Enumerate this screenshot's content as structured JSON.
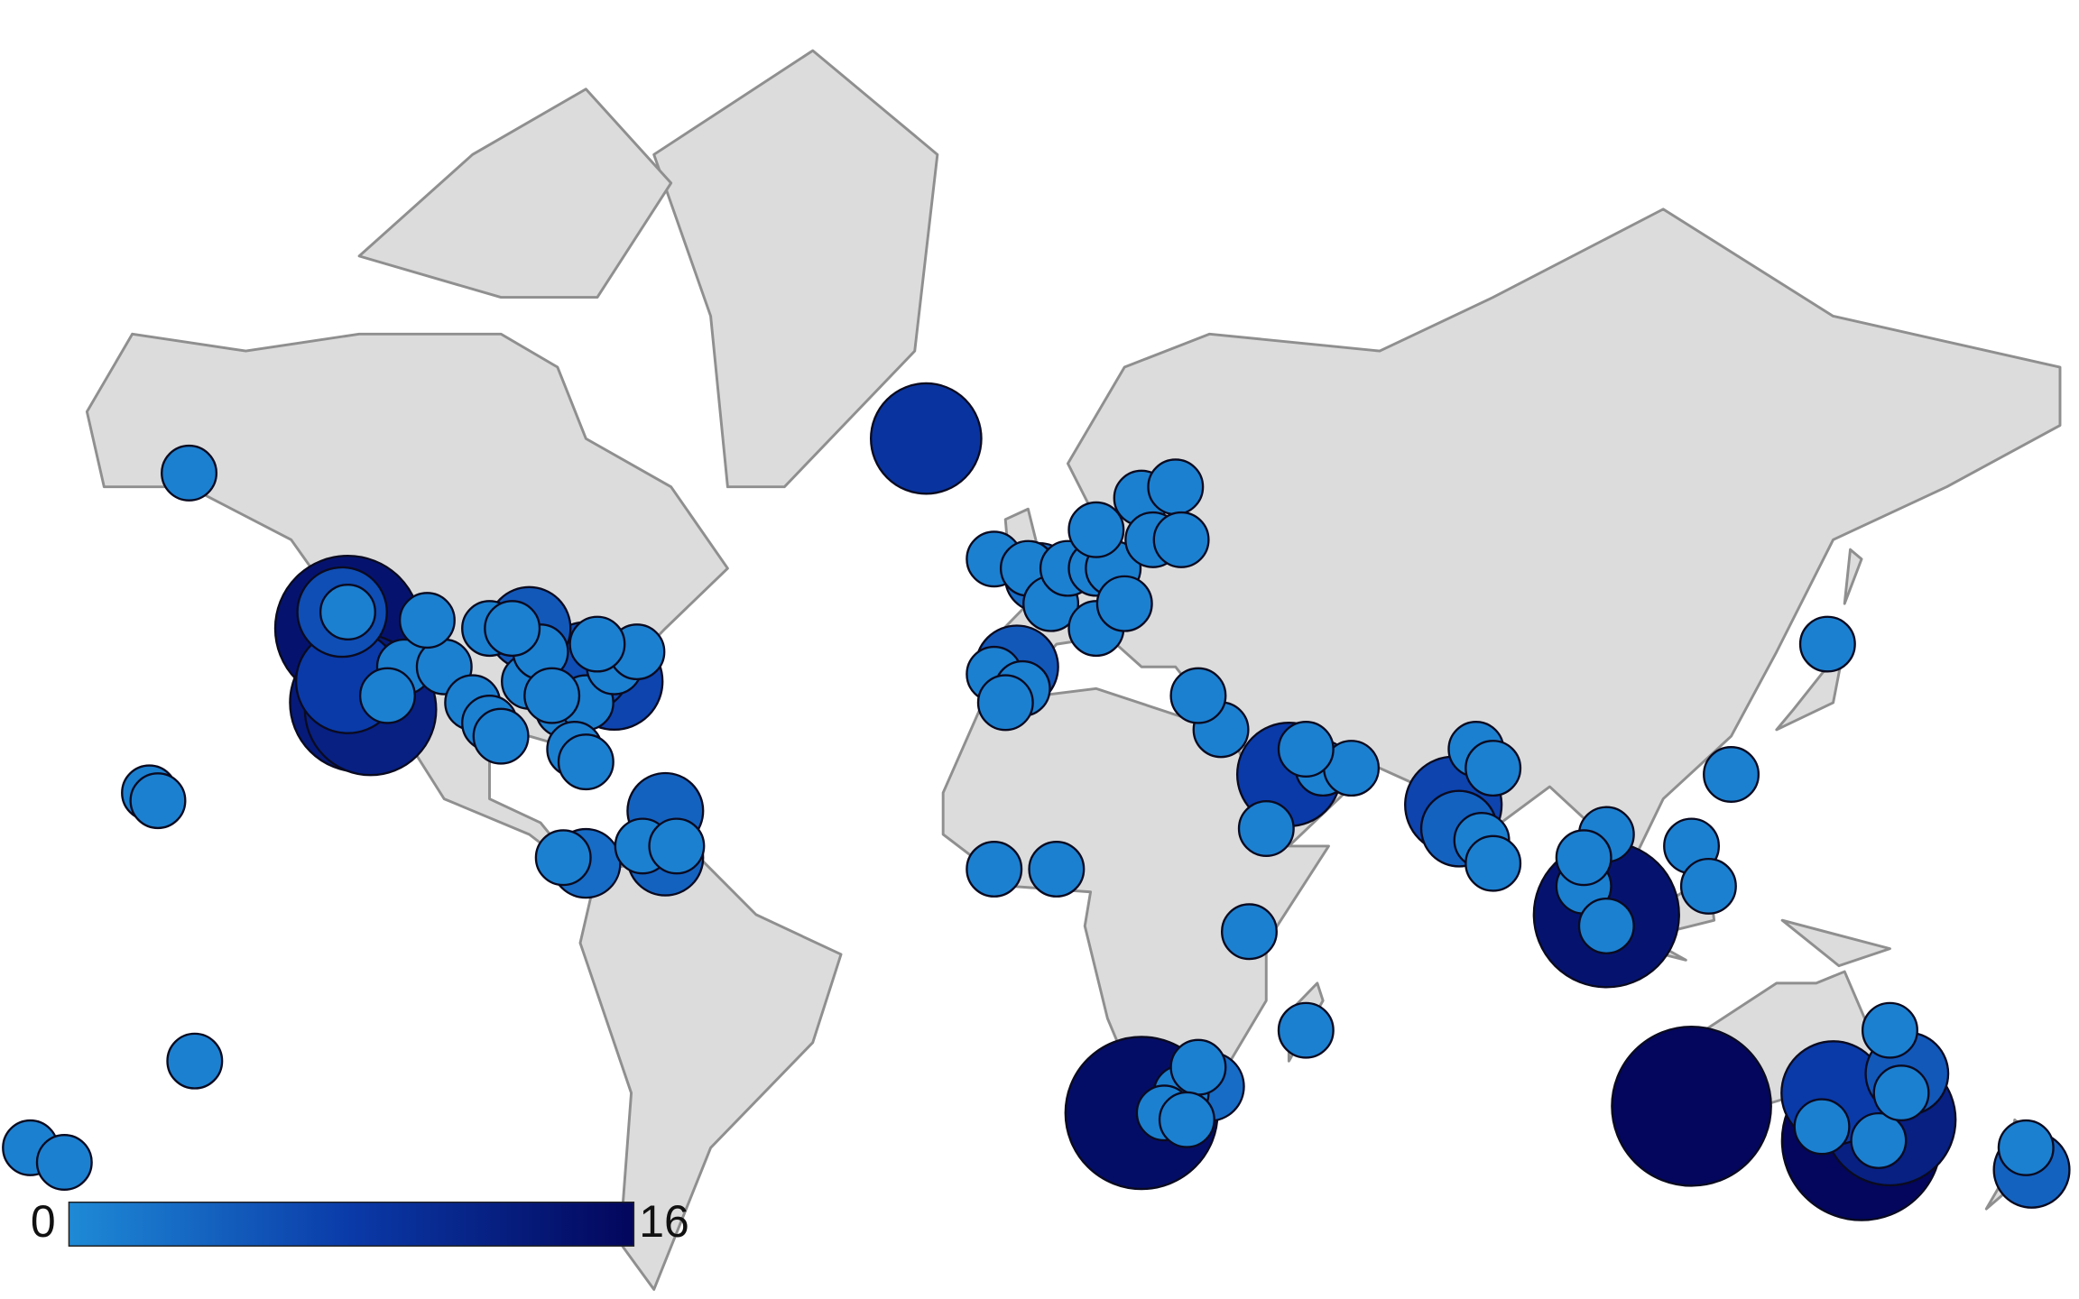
{
  "chart_data": {
    "type": "bubble-map",
    "clim": [
      0,
      16
    ],
    "cticks": [
      0,
      16
    ],
    "colormap": [
      "#1e8ad6",
      "#0a3aa8",
      "#03065c"
    ],
    "lon": [
      -150,
      -157,
      -155.5,
      -149,
      -178,
      -172,
      -122,
      -120,
      -118,
      -122,
      -123,
      -122,
      -112,
      -105,
      -100,
      -97,
      -95,
      -90,
      -88,
      -84,
      -80,
      -75,
      -71,
      -78,
      -82,
      -80,
      -115,
      -108,
      -97,
      -86,
      -93,
      -75,
      -80,
      -90,
      -80,
      -84,
      -66,
      -66,
      -70,
      -64,
      -20,
      -8,
      -2,
      0,
      -4,
      -8,
      2,
      5,
      10,
      13,
      18,
      24,
      10,
      -3,
      -6,
      20,
      15,
      25,
      10,
      32,
      28,
      44,
      50,
      55,
      40,
      47,
      73,
      77,
      80,
      78,
      80,
      74,
      100,
      96,
      100,
      100,
      96,
      139,
      122,
      115,
      118,
      -8,
      3,
      37,
      47,
      18,
      25,
      28,
      30,
      22,
      26,
      115,
      145,
      150,
      140,
      153,
      150,
      148,
      152,
      138,
      174,
      175
    ],
    "lat": [
      61.2,
      21,
      19.7,
      -25,
      -38,
      -40,
      45,
      35,
      34,
      38,
      47,
      47,
      40,
      40,
      35,
      32,
      30,
      38,
      42,
      34,
      35,
      40,
      42,
      43,
      28,
      26,
      36,
      46,
      45,
      36,
      45,
      38,
      40,
      45,
      9,
      10,
      10,
      18,
      12,
      12,
      64,
      53,
      52,
      51,
      40,
      39,
      48,
      52,
      52,
      52,
      59,
      60,
      45,
      37,
      35,
      55,
      48,
      55,
      56,
      31,
      36,
      24,
      25,
      25,
      15,
      28,
      19,
      28,
      25,
      13,
      9,
      15,
      14,
      5,
      0,
      -2,
      10,
      43,
      24,
      12,
      5,
      8,
      8,
      -3,
      -20,
      -33,
      -30,
      -26,
      -29,
      -33,
      -34,
      -32,
      -37,
      -34,
      -30,
      -27,
      -20,
      -37,
      -30,
      -35,
      -38,
      -41
    ],
    "values": [
      1,
      1,
      1,
      1,
      1,
      1,
      14,
      13,
      12,
      8,
      6,
      1,
      1,
      1,
      1,
      1,
      1,
      1,
      1,
      1,
      1,
      1,
      1,
      1,
      1,
      1,
      1,
      1,
      1,
      1,
      1,
      7,
      6,
      5,
      3,
      1,
      4,
      4,
      1,
      1,
      9,
      1,
      1,
      3,
      5,
      1,
      1,
      1,
      1,
      1,
      1,
      1,
      1,
      1,
      1,
      1,
      1,
      1,
      1,
      1,
      1,
      8,
      1,
      1,
      1,
      1,
      7,
      1,
      1,
      1,
      1,
      4,
      1,
      1,
      14,
      1,
      1,
      1,
      1,
      1,
      1,
      1,
      1,
      1,
      1,
      15,
      1,
      1,
      3,
      1,
      1,
      16,
      16,
      12,
      8,
      5,
      1,
      1,
      1,
      1,
      1,
      4
    ]
  }
}
